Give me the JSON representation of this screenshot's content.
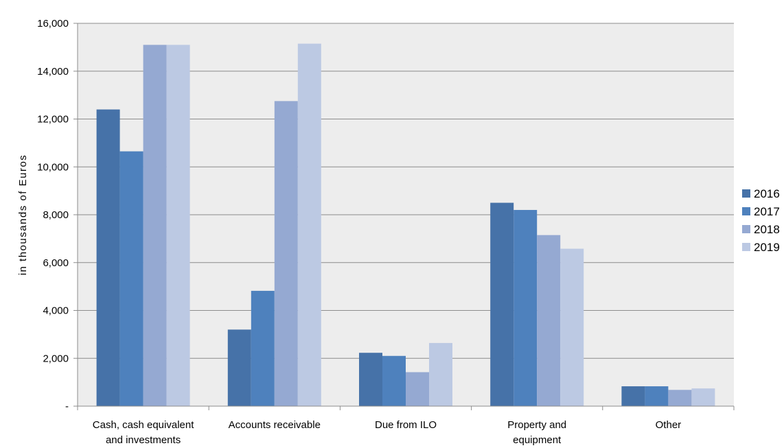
{
  "chart_data": {
    "type": "bar",
    "categories": [
      [
        "Cash, cash equivalent",
        "and investments"
      ],
      [
        "Accounts receivable"
      ],
      [
        "Due from ILO"
      ],
      [
        "Property and",
        "equipment"
      ],
      [
        "Other"
      ]
    ],
    "series": [
      {
        "name": "2016",
        "color": "#4672A8",
        "values": [
          12400,
          3200,
          2230,
          8500,
          830
        ]
      },
      {
        "name": "2017",
        "color": "#4E81BD",
        "values": [
          10650,
          4820,
          2100,
          8200,
          830
        ]
      },
      {
        "name": "2018",
        "color": "#95A9D2",
        "values": [
          15100,
          12750,
          1420,
          7150,
          680
        ]
      },
      {
        "name": "2019",
        "color": "#BCC9E3",
        "values": [
          15100,
          15150,
          2640,
          6580,
          740
        ]
      }
    ],
    "ylabel": "in thousands of Euros",
    "ylim": [
      0,
      16000
    ],
    "yticks": [
      {
        "value": 0,
        "label": "-"
      },
      {
        "value": 2000,
        "label": "2,000"
      },
      {
        "value": 4000,
        "label": "4,000"
      },
      {
        "value": 6000,
        "label": "6,000"
      },
      {
        "value": 8000,
        "label": "8,000"
      },
      {
        "value": 10000,
        "label": "10,000"
      },
      {
        "value": 12000,
        "label": "12,000"
      },
      {
        "value": 14000,
        "label": "14,000"
      },
      {
        "value": 16000,
        "label": "16,000"
      }
    ],
    "grid": true,
    "legend_position": "right"
  }
}
